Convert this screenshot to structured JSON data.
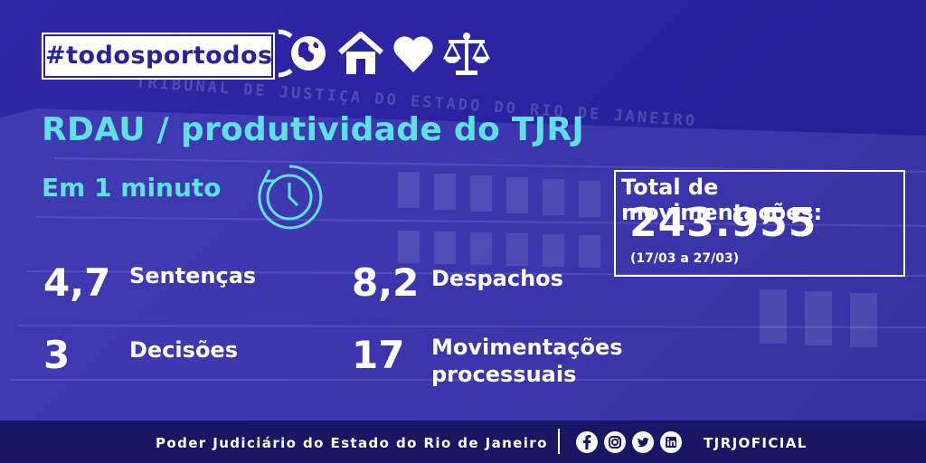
{
  "hashtag": "#todosportodos",
  "header_icons": [
    "globe-icon",
    "house-icon",
    "heart-icon",
    "scales-icon"
  ],
  "title": "RDAU / produtividade do TJRJ",
  "subtitle": "Em 1 minuto",
  "stats": [
    {
      "value": "4,7",
      "label": "Sentenças"
    },
    {
      "value": "8,2",
      "label": "Despachos"
    },
    {
      "value": "3",
      "label": "Decisões"
    },
    {
      "value": "17",
      "label_line1": "Movimentações",
      "label_line2": "processuais"
    }
  ],
  "total": {
    "label": "Total de movimentações:",
    "value": "243.955",
    "period": "(17/03 a 27/03)"
  },
  "background_sign": {
    "line1": "TRIBUNAL DE JUSTIÇA DO ESTADO DO RIO DE JANEIRO"
  },
  "footer": {
    "text": "Poder Judiciário do Estado do Rio de Janeiro",
    "social_icons": [
      "facebook-icon",
      "instagram-icon",
      "twitter-icon",
      "linkedin-icon"
    ],
    "handle": "TJRJOFICIAL"
  },
  "colors": {
    "background": "#2a22a0",
    "accent": "#5fe0e6",
    "footer": "#1b1663",
    "text": "#ffffff"
  }
}
